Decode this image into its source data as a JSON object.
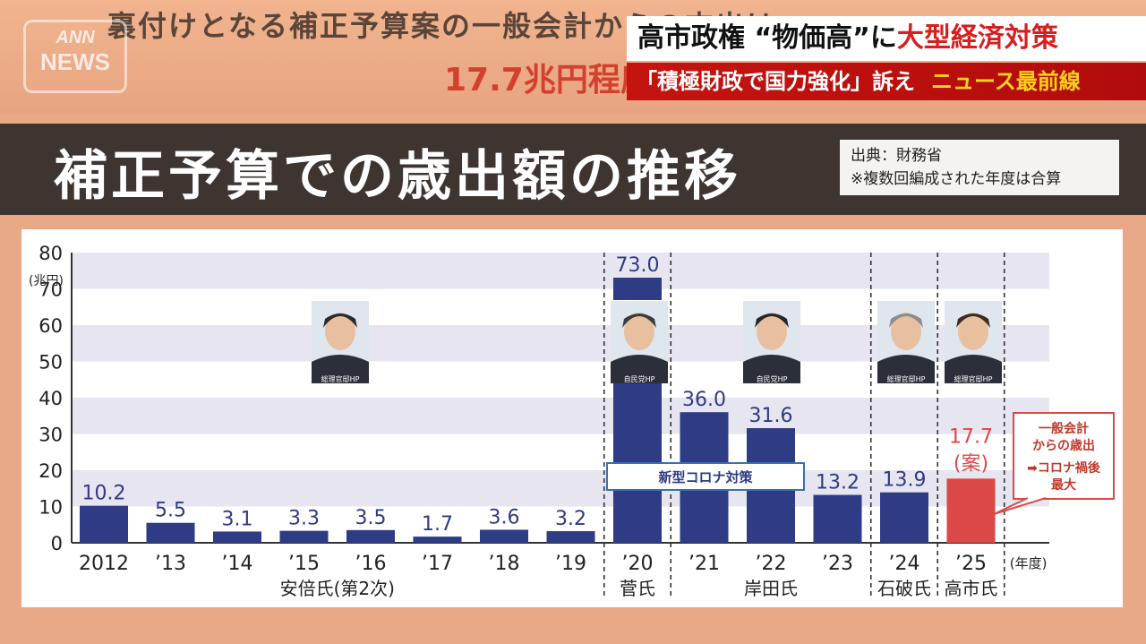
{
  "header": {
    "top_line1": "裏付けとなる補正予算案の一般会計からの支出は",
    "top_line2": "17.7兆円程度",
    "logo_top": "ANN",
    "logo_bottom": "NEWS",
    "headline_black": "高市政権 “物価高”に",
    "headline_red": "大型経済対策",
    "sub_quote": "「積極財政で国力強化」訴え",
    "program": "ニュース最前線"
  },
  "title_band": {
    "title": "補正予算での歳出額の推移",
    "source_line1": "出典：財務省",
    "source_line2": "※複数回編成された年度は合算"
  },
  "chart_data": {
    "type": "bar",
    "title": "補正予算での歳出額の推移",
    "ylabel": "(兆円)",
    "xlabel": "(年度)",
    "ylim": [
      0,
      80
    ],
    "yticks": [
      0,
      10,
      20,
      30,
      40,
      50,
      60,
      70,
      80
    ],
    "categories": [
      "2012",
      "’13",
      "’14",
      "’15",
      "’16",
      "’17",
      "’18",
      "’19",
      "’20",
      "’21",
      "’22",
      "’23",
      "’24",
      "’25"
    ],
    "values": [
      10.2,
      5.5,
      3.1,
      3.3,
      3.5,
      1.7,
      3.6,
      3.2,
      73.0,
      36.0,
      31.6,
      13.2,
      13.9,
      17.7
    ],
    "value_labels": [
      "10.2",
      "5.5",
      "3.1",
      "3.3",
      "3.5",
      "1.7",
      "3.6",
      "3.2",
      "73.0",
      "36.0",
      "31.6",
      "13.2",
      "13.9",
      "17.7"
    ],
    "highlight_index": 13,
    "highlight_suffix": "(案)",
    "colors": {
      "bar": "#2e3b85",
      "highlight": "#dc4848",
      "stripe": "#e6e5f0"
    },
    "axis_break": {
      "index": 8,
      "visible_until": 40
    },
    "covid_label": "新型コロナ対策",
    "callout": {
      "line1": "一般会計",
      "line2": "からの歳出",
      "line3": "➡コロナ禍後",
      "line4": "最大"
    },
    "pm_groups": [
      {
        "name": "安倍氏",
        "suffix": "(第2次)",
        "start": 0,
        "end": 7,
        "photo_credit": "総理官邸HP"
      },
      {
        "name": "菅氏",
        "suffix": "",
        "start": 8,
        "end": 8,
        "photo_credit": "自民党HP"
      },
      {
        "name": "岸田氏",
        "suffix": "",
        "start": 9,
        "end": 11,
        "photo_credit": "自民党HP"
      },
      {
        "name": "石破氏",
        "suffix": "",
        "start": 12,
        "end": 12,
        "photo_credit": "総理官邸HP"
      },
      {
        "name": "高市氏",
        "suffix": "",
        "start": 13,
        "end": 13,
        "photo_credit": "総理官邸HP"
      }
    ]
  }
}
